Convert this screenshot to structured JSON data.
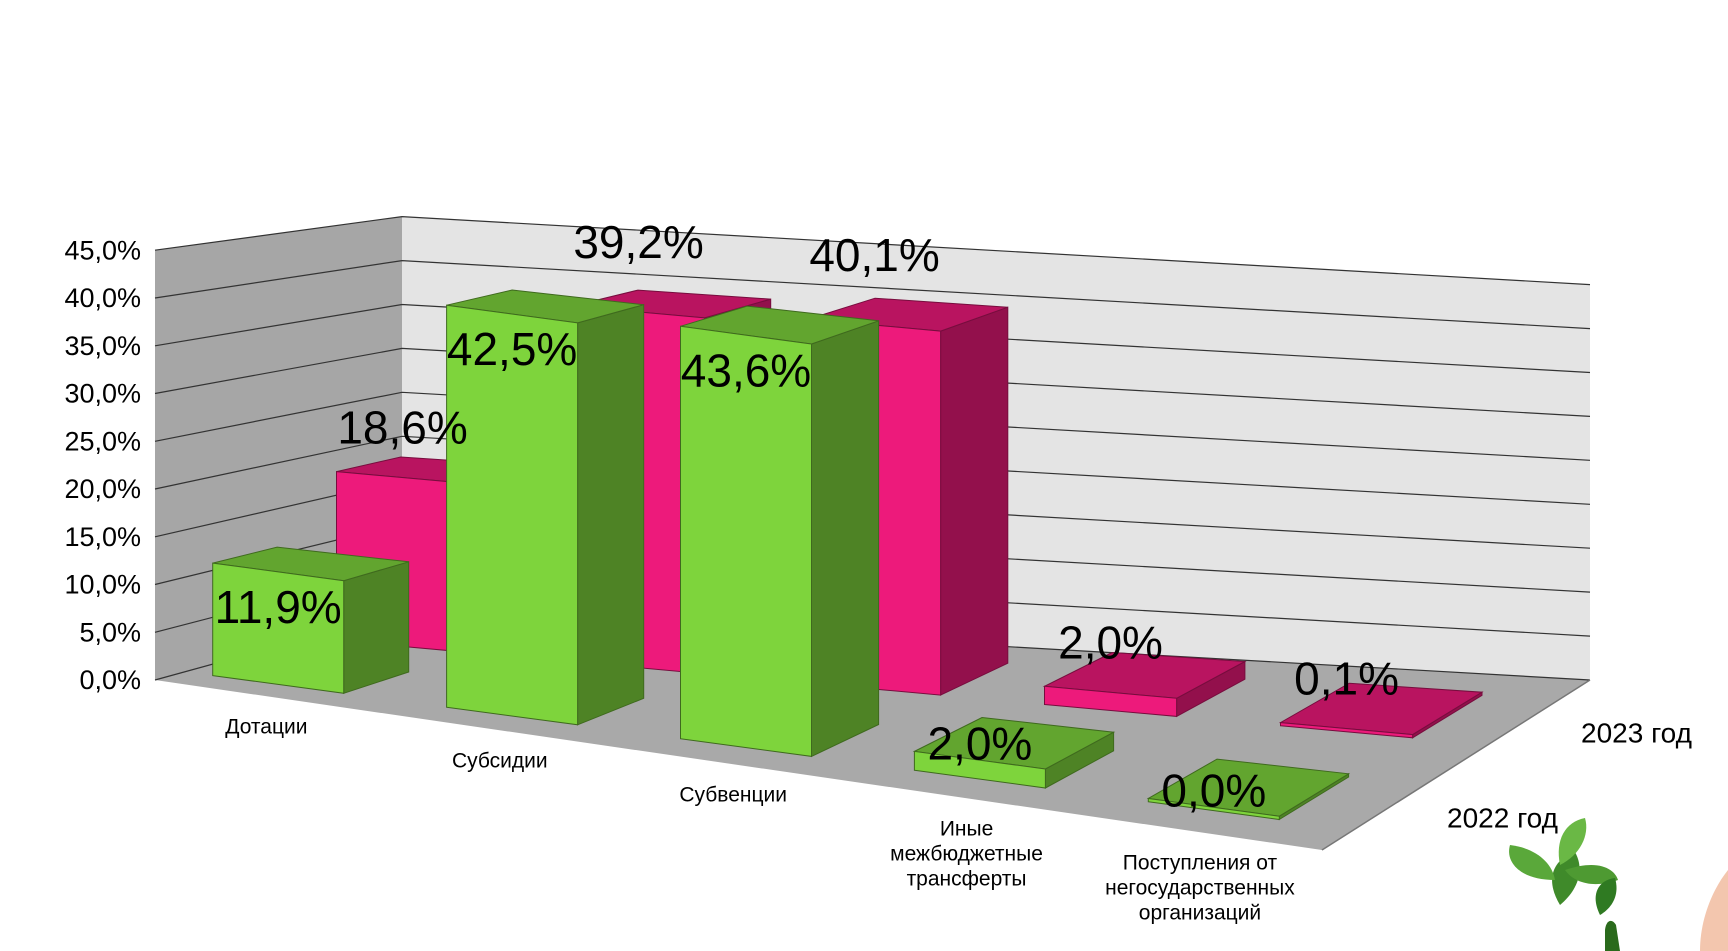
{
  "chart_data": {
    "type": "bar",
    "categories": [
      "Дотации",
      "Субсидии",
      "Субвенции",
      "Иные межбюджетные трансферты",
      "Поступления от негосударственных организаций"
    ],
    "series": [
      {
        "name": "2022 год",
        "values": [
          11.9,
          42.5,
          43.6,
          2.0,
          0.0
        ],
        "labels": [
          "11,9%",
          "42,5%",
          "43,6%",
          "2,0%",
          "0,0%"
        ],
        "color": "#7ed43c"
      },
      {
        "name": "2023 год",
        "values": [
          18.6,
          39.2,
          40.1,
          2.0,
          0.1
        ],
        "labels": [
          "18,6%",
          "39,2%",
          "40,1%",
          "2,0%",
          "0,1%"
        ],
        "color": "#ed1a7b"
      }
    ],
    "y_ticks": [
      "0,0%",
      "5,0%",
      "10,0%",
      "15,0%",
      "20,0%",
      "25,0%",
      "30,0%",
      "35,0%",
      "40,0%",
      "45,0%"
    ],
    "ylim": [
      0,
      45
    ],
    "grid": true,
    "colors": {
      "wall_back": "#e4e4e4",
      "wall_side": "#a6a6a6",
      "floor": "#a9a9a9",
      "grid": "#333333"
    }
  }
}
